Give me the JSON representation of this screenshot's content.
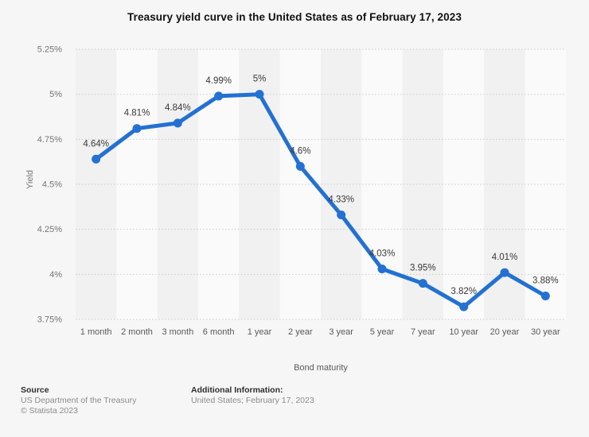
{
  "chart_data": {
    "type": "line",
    "title": "Treasury yield curve in the United States as of February 17, 2023",
    "xlabel": "Bond maturity",
    "ylabel": "Yield",
    "categories": [
      "1 month",
      "2 month",
      "3 month",
      "6 month",
      "1 year",
      "2 year",
      "3 year",
      "5 year",
      "7 year",
      "10 year",
      "20 year",
      "30 year"
    ],
    "values": [
      4.64,
      4.81,
      4.84,
      4.99,
      5.0,
      4.6,
      4.33,
      4.03,
      3.95,
      3.82,
      4.01,
      3.88
    ],
    "value_labels": [
      "4.64%",
      "4.81%",
      "4.84%",
      "4.99%",
      "5%",
      "4.6%",
      "4.33%",
      "4.03%",
      "3.95%",
      "3.82%",
      "4.01%",
      "3.88%"
    ],
    "y_ticks": [
      {
        "value": 5.25,
        "label": "5.25%"
      },
      {
        "value": 5.0,
        "label": "5%"
      },
      {
        "value": 4.75,
        "label": "4.75%"
      },
      {
        "value": 4.5,
        "label": "4.5%"
      },
      {
        "value": 4.25,
        "label": "4.25%"
      },
      {
        "value": 4.0,
        "label": "4%"
      },
      {
        "value": 3.75,
        "label": "3.75%"
      }
    ],
    "ylim": [
      3.75,
      5.25
    ],
    "grid": "horizontal-dotted",
    "legend": "none",
    "line_color": "#2271d3",
    "marker_color": "#2271d3",
    "gridline_color": "#cccccc",
    "band_colors": [
      "#f1f1f1",
      "#fafafa"
    ],
    "tick_label_color": "#757575",
    "data_label_color": "#3a3a3a"
  },
  "footer": {
    "source_heading": "Source",
    "source_name": "US Department of the Treasury",
    "copyright": "© Statista 2023",
    "additional_heading": "Additional Information:",
    "additional_info": "United States; February 17, 2023"
  }
}
